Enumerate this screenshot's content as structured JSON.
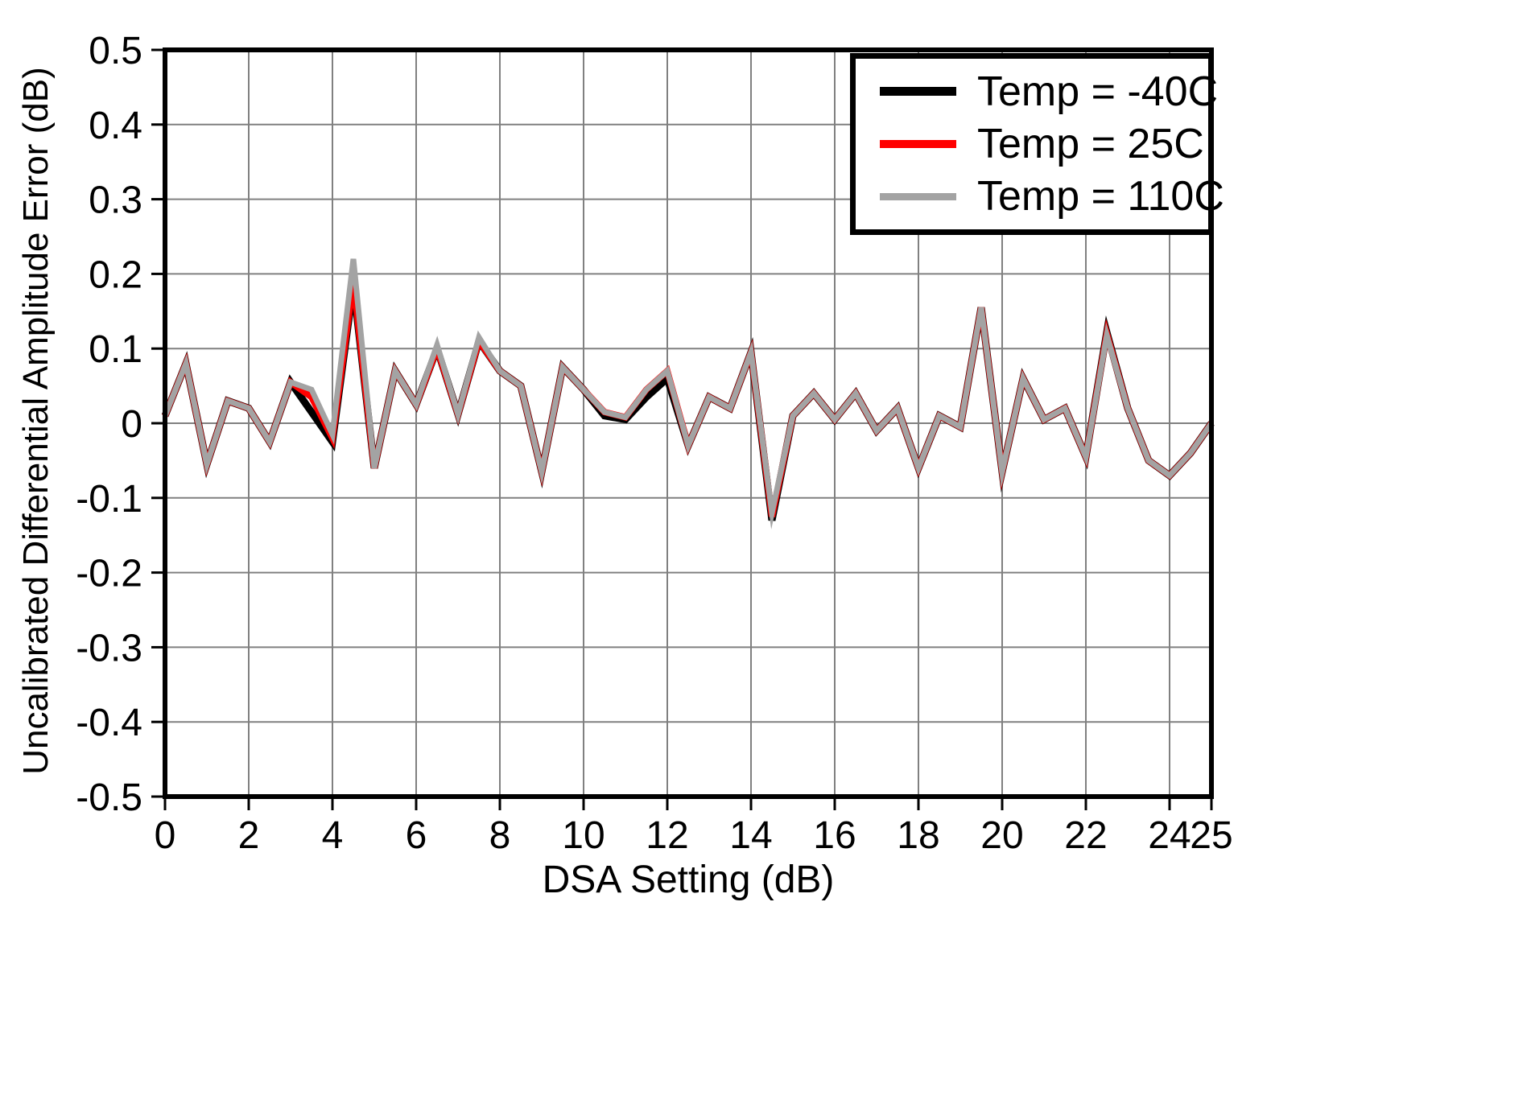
{
  "chart_data": {
    "type": "line",
    "xlabel": "DSA Setting (dB)",
    "ylabel": "Uncalibrated Differential Amplitude Error (dB)",
    "xlim": [
      0,
      25
    ],
    "ylim": [
      -0.5,
      0.5
    ],
    "grid": true,
    "legend_position": "top-right",
    "x_start": 0,
    "x_step": 0.5,
    "xticks": [
      {
        "v": 0,
        "label": "0"
      },
      {
        "v": 2,
        "label": "2"
      },
      {
        "v": 4,
        "label": "4"
      },
      {
        "v": 6,
        "label": "6"
      },
      {
        "v": 8,
        "label": "8"
      },
      {
        "v": 10,
        "label": "10"
      },
      {
        "v": 12,
        "label": "12"
      },
      {
        "v": 14,
        "label": "14"
      },
      {
        "v": 16,
        "label": "16"
      },
      {
        "v": 18,
        "label": "18"
      },
      {
        "v": 20,
        "label": "20"
      },
      {
        "v": 22,
        "label": "22"
      },
      {
        "v": 24,
        "label": "24"
      },
      {
        "v": 25,
        "label": "25"
      }
    ],
    "yticks": [
      {
        "v": 0.5,
        "label": "0.5"
      },
      {
        "v": 0.4,
        "label": "0.4"
      },
      {
        "v": 0.3,
        "label": "0.3"
      },
      {
        "v": 0.2,
        "label": "0.2"
      },
      {
        "v": 0.1,
        "label": "0.1"
      },
      {
        "v": 0.0,
        "label": "0"
      },
      {
        "v": -0.1,
        "label": "-0.1"
      },
      {
        "v": -0.2,
        "label": "-0.2"
      },
      {
        "v": -0.3,
        "label": "-0.3"
      },
      {
        "v": -0.4,
        "label": "-0.4"
      },
      {
        "v": -0.5,
        "label": "-0.5"
      }
    ],
    "series": [
      {
        "name": "temp-minus-40c",
        "label": "Temp = -40C",
        "color": "#000000",
        "values": [
          0.01,
          0.08,
          -0.055,
          0.03,
          0.02,
          -0.025,
          0.055,
          0.015,
          -0.025,
          0.185,
          -0.06,
          0.07,
          0.025,
          0.1,
          0.012,
          0.11,
          0.07,
          0.05,
          -0.065,
          0.075,
          0.045,
          0.01,
          0.005,
          0.035,
          0.06,
          -0.03,
          0.035,
          0.02,
          0.095,
          -0.13,
          0.01,
          0.04,
          0.005,
          0.04,
          -0.01,
          0.02,
          -0.06,
          0.01,
          -0.005,
          0.155,
          -0.065,
          0.06,
          0.005,
          0.02,
          -0.045,
          0.122,
          0.02,
          -0.05,
          -0.07,
          -0.04,
          0.0
        ]
      },
      {
        "name": "temp-25c",
        "label": "Temp = 25C",
        "color": "#ff0000",
        "values": [
          0.01,
          0.08,
          -0.055,
          0.03,
          0.02,
          -0.025,
          0.055,
          0.035,
          -0.02,
          0.19,
          -0.06,
          0.07,
          0.025,
          0.1,
          0.012,
          0.11,
          0.07,
          0.05,
          -0.065,
          0.075,
          0.045,
          0.015,
          0.008,
          0.045,
          0.07,
          -0.03,
          0.035,
          0.02,
          0.095,
          -0.125,
          0.01,
          0.04,
          0.005,
          0.04,
          -0.01,
          0.02,
          -0.06,
          0.01,
          -0.005,
          0.155,
          -0.065,
          0.06,
          0.005,
          0.02,
          -0.045,
          0.12,
          0.02,
          -0.05,
          -0.07,
          -0.04,
          0.0
        ]
      },
      {
        "name": "temp-110c",
        "label": "Temp = 110C",
        "color": "#a3a3a3",
        "values": [
          0.01,
          0.08,
          -0.055,
          0.03,
          0.02,
          -0.025,
          0.055,
          0.045,
          -0.015,
          0.22,
          -0.06,
          0.07,
          0.025,
          0.105,
          0.012,
          0.115,
          0.07,
          0.05,
          -0.065,
          0.075,
          0.045,
          0.015,
          0.008,
          0.045,
          0.07,
          -0.03,
          0.035,
          0.02,
          0.095,
          -0.12,
          0.01,
          0.04,
          0.005,
          0.04,
          -0.01,
          0.02,
          -0.06,
          0.01,
          -0.005,
          0.155,
          -0.065,
          0.06,
          0.005,
          0.02,
          -0.045,
          0.118,
          0.02,
          -0.05,
          -0.07,
          -0.04,
          0.0
        ]
      }
    ],
    "style": {
      "grid_color": "#808080",
      "axis_color": "#000000",
      "background": "#ffffff"
    }
  }
}
